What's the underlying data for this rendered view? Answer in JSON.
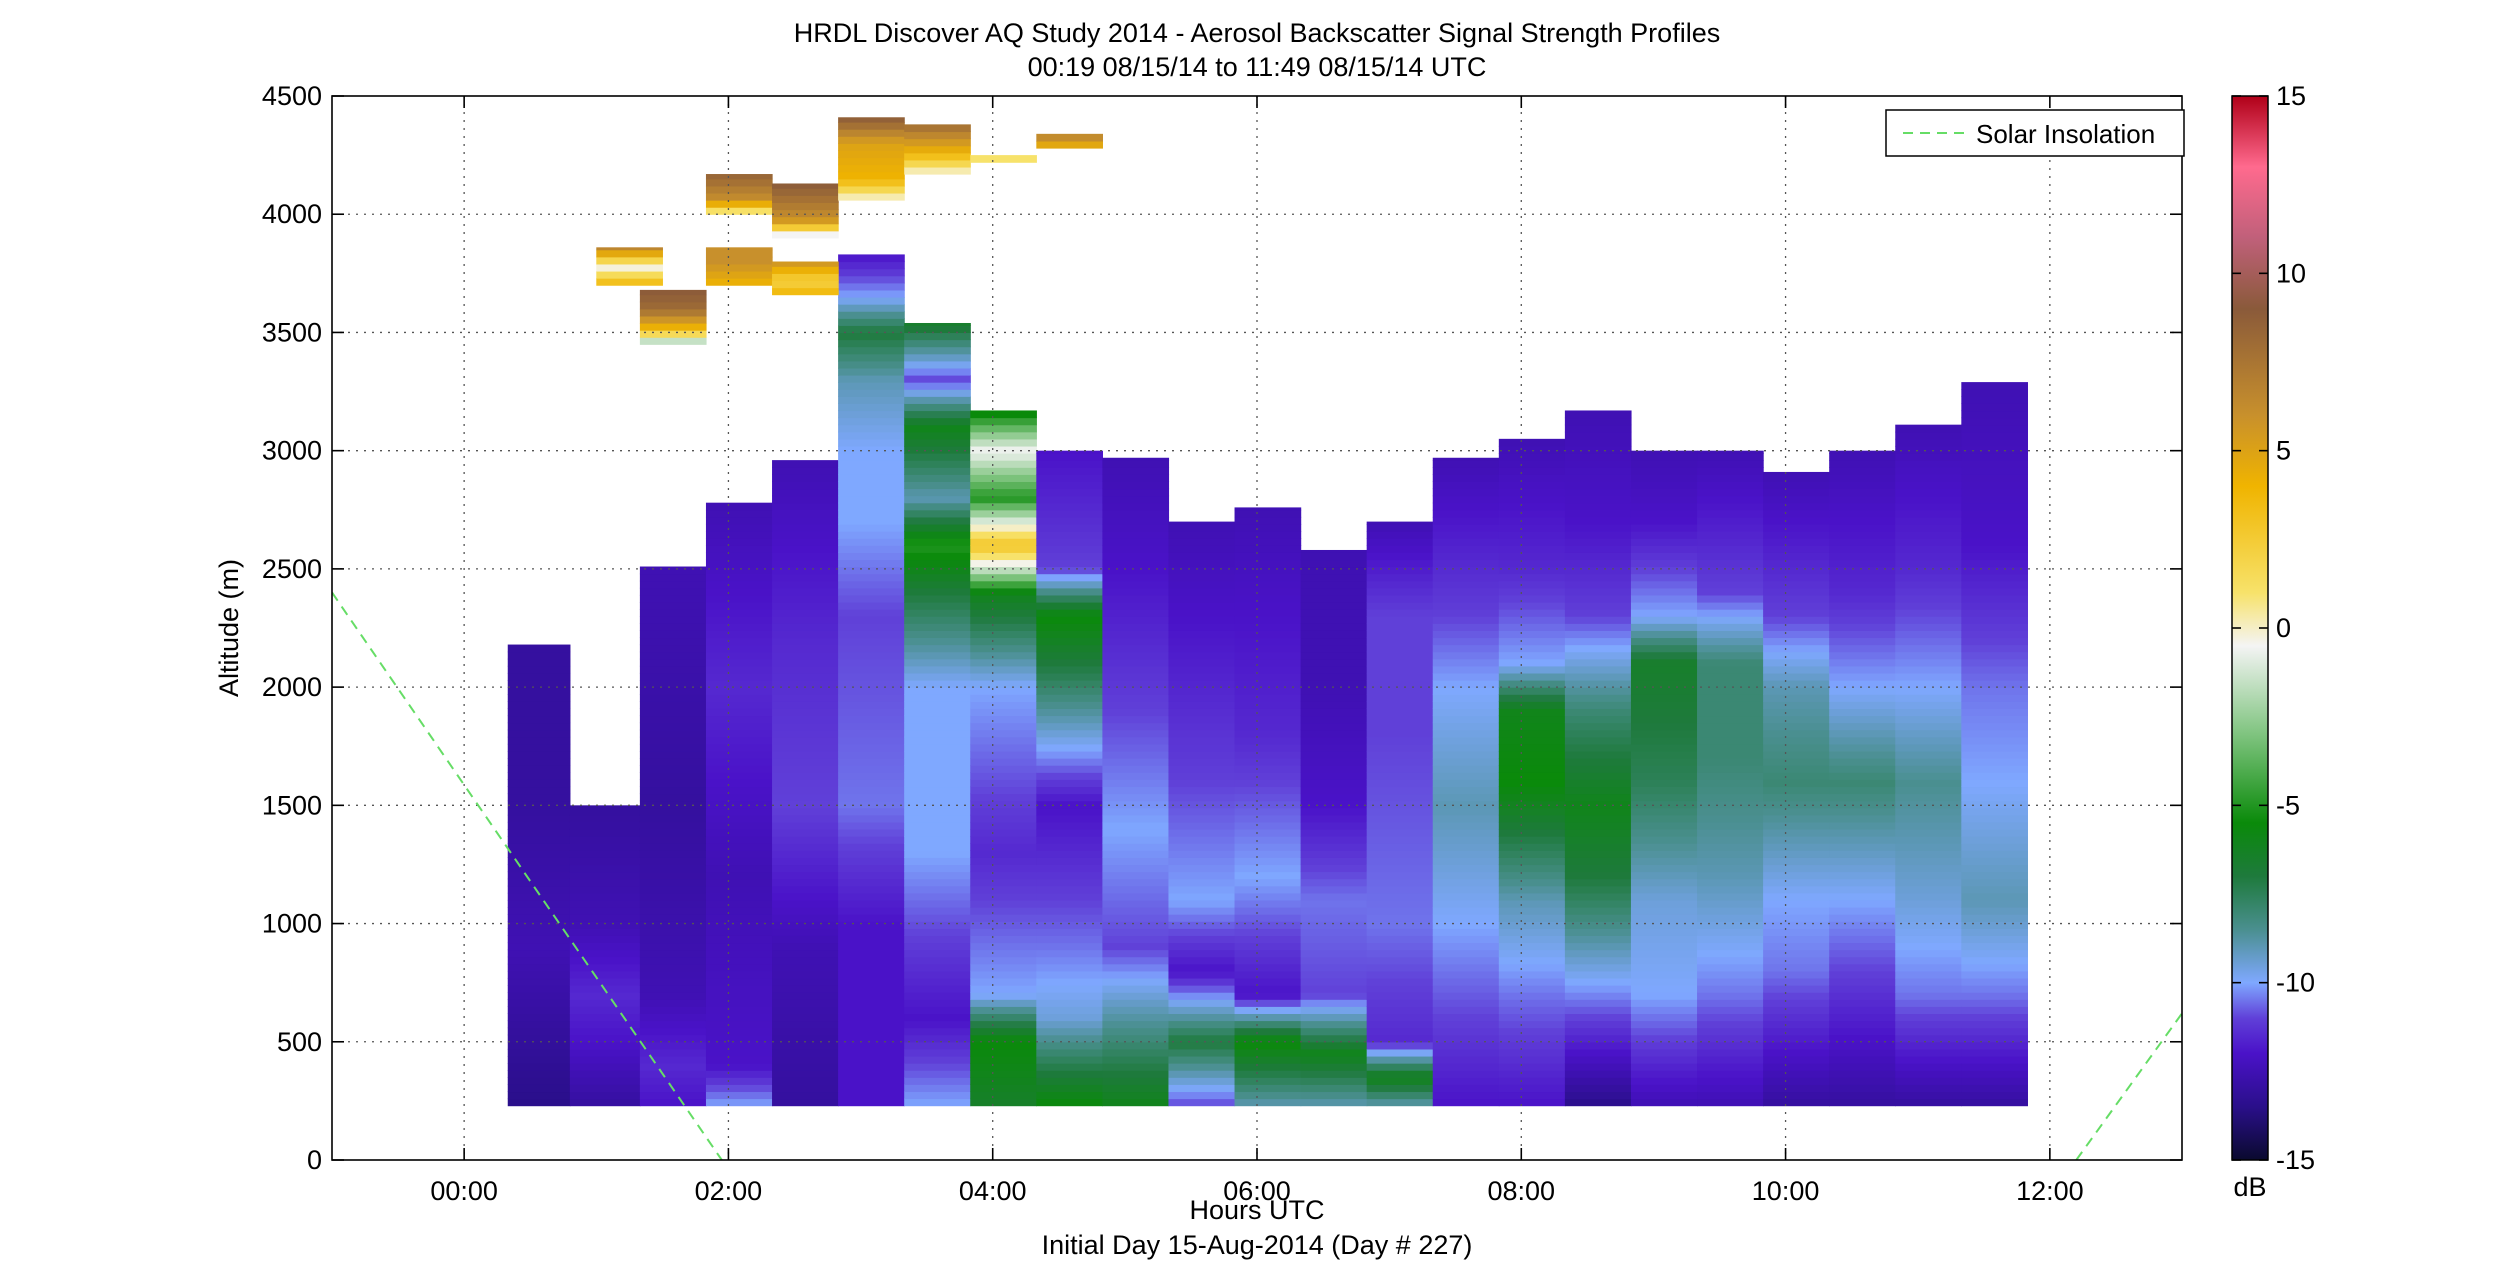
{
  "chart_data": {
    "type": "heatmap",
    "title": "HRDL Discover AQ Study 2014 - Aerosol Backscatter Signal Strength Profiles",
    "subtitle": "00:19 08/15/14 to 11:49 08/15/14  UTC",
    "xlabel": "Hours UTC",
    "x_footer": "Initial Day 15-Aug-2014 (Day # 227)",
    "ylabel": "Altitude (m)",
    "colorbar_label": "dB",
    "xlim": [
      -1.0,
      13.0
    ],
    "ylim": [
      0,
      4500
    ],
    "clim": [
      -15,
      15
    ],
    "x_ticks": [
      0,
      2,
      4,
      6,
      8,
      10,
      12
    ],
    "x_tick_labels": [
      "00:00",
      "02:00",
      "04:00",
      "06:00",
      "08:00",
      "10:00",
      "12:00"
    ],
    "y_ticks": [
      0,
      500,
      1000,
      1500,
      2000,
      2500,
      3000,
      3500,
      4000,
      4500
    ],
    "y_tick_labels": [
      "0",
      "500",
      "1000",
      "1500",
      "2000",
      "2500",
      "3000",
      "3500",
      "4000",
      "4500"
    ],
    "colorbar_ticks": [
      -15,
      -10,
      -5,
      0,
      5,
      10,
      15
    ],
    "colorbar_tick_labels": [
      "-15",
      "-10",
      "-5",
      "0",
      "5",
      "10",
      "15"
    ],
    "grid": true,
    "legend": {
      "position": "top-right",
      "entries": [
        {
          "name": "Solar Insolation",
          "color": "#66dd66",
          "style": "dashed"
        }
      ]
    },
    "colormap": [
      [
        -15,
        "#0a0a2e"
      ],
      [
        -13.5,
        "#2a0f8a"
      ],
      [
        -12,
        "#4a12c8"
      ],
      [
        -11,
        "#6040d8"
      ],
      [
        -10,
        "#7fa8ff"
      ],
      [
        -8.5,
        "#4a8f8f"
      ],
      [
        -7,
        "#1e7a3c"
      ],
      [
        -5.5,
        "#0a8a0a"
      ],
      [
        -3,
        "#7fc47f"
      ],
      [
        -0.5,
        "#f4f4f4"
      ],
      [
        1,
        "#f7e26a"
      ],
      [
        4,
        "#f0b400"
      ],
      [
        6,
        "#c8902c"
      ],
      [
        9,
        "#8a5a3a"
      ],
      [
        11,
        "#c0607a"
      ],
      [
        13,
        "#ff6a8e"
      ],
      [
        15,
        "#b00018"
      ]
    ],
    "columns": [
      {
        "t0": 0.33,
        "t1": 0.8,
        "bottom": 230,
        "top": 2180,
        "profile": [
          [
            230,
            -13.5
          ],
          [
            900,
            -12.5
          ],
          [
            1500,
            -13
          ],
          [
            2180,
            -13
          ]
        ]
      },
      {
        "t0": 0.8,
        "t1": 1.33,
        "bottom": 230,
        "top": 1500,
        "profile": [
          [
            230,
            -13
          ],
          [
            500,
            -12
          ],
          [
            700,
            -11.5
          ],
          [
            1000,
            -12.5
          ],
          [
            1500,
            -13
          ]
        ]
      },
      {
        "t0": 1.33,
        "t1": 1.83,
        "bottom": 230,
        "top": 2510,
        "profile": [
          [
            230,
            -12
          ],
          [
            400,
            -11.5
          ],
          [
            700,
            -12.5
          ],
          [
            1500,
            -13
          ],
          [
            2510,
            -12.5
          ]
        ]
      },
      {
        "t0": 1.83,
        "t1": 2.33,
        "bottom": 230,
        "top": 2780,
        "profile": [
          [
            230,
            -10
          ],
          [
            400,
            -12
          ],
          [
            1200,
            -12.5
          ],
          [
            2000,
            -11.5
          ],
          [
            2780,
            -12.5
          ]
        ]
      },
      {
        "t0": 2.33,
        "t1": 2.83,
        "bottom": 230,
        "top": 2960,
        "profile": [
          [
            230,
            -13
          ],
          [
            900,
            -12.5
          ],
          [
            1500,
            -11
          ],
          [
            2200,
            -11.5
          ],
          [
            2960,
            -12.5
          ]
        ]
      },
      {
        "t0": 2.83,
        "t1": 3.33,
        "bottom": 230,
        "top": 3830,
        "profile": [
          [
            230,
            -12
          ],
          [
            1000,
            -12
          ],
          [
            1500,
            -10.5
          ],
          [
            2300,
            -11
          ],
          [
            2700,
            -10
          ],
          [
            3000,
            -10
          ],
          [
            3300,
            -9
          ],
          [
            3500,
            -7
          ],
          [
            3650,
            -10
          ],
          [
            3830,
            -12
          ]
        ]
      },
      {
        "t0": 3.33,
        "t1": 3.83,
        "bottom": 230,
        "top": 3540,
        "profile": [
          [
            230,
            -10
          ],
          [
            600,
            -12
          ],
          [
            1300,
            -10
          ],
          [
            2000,
            -10
          ],
          [
            2400,
            -7
          ],
          [
            2600,
            -5
          ],
          [
            2800,
            -9
          ],
          [
            3100,
            -6
          ],
          [
            3300,
            -11
          ],
          [
            3540,
            -6.5
          ]
        ]
      },
      {
        "t0": 3.83,
        "t1": 4.33,
        "bottom": 230,
        "top": 3170,
        "profile": [
          [
            230,
            -6.5
          ],
          [
            500,
            -5.5
          ],
          [
            700,
            -10
          ],
          [
            1300,
            -11.5
          ],
          [
            2000,
            -10
          ],
          [
            2400,
            -6
          ],
          [
            2600,
            3
          ],
          [
            2800,
            -5
          ],
          [
            3000,
            -0.5
          ],
          [
            3170,
            -6
          ]
        ]
      },
      {
        "t0": 4.33,
        "t1": 4.83,
        "bottom": 230,
        "top": 3000,
        "profile": [
          [
            230,
            -5.5
          ],
          [
            600,
            -9.5
          ],
          [
            900,
            -10.5
          ],
          [
            1500,
            -12
          ],
          [
            2100,
            -7
          ],
          [
            2300,
            -5.5
          ],
          [
            2500,
            -11
          ],
          [
            3000,
            -12
          ]
        ]
      },
      {
        "t0": 4.83,
        "t1": 5.33,
        "bottom": 230,
        "top": 2970,
        "profile": [
          [
            230,
            -6
          ],
          [
            500,
            -8
          ],
          [
            900,
            -11
          ],
          [
            1400,
            -10
          ],
          [
            1900,
            -11
          ],
          [
            2500,
            -12
          ],
          [
            2970,
            -12.5
          ]
        ]
      },
      {
        "t0": 5.33,
        "t1": 5.83,
        "bottom": 230,
        "top": 2700,
        "profile": [
          [
            230,
            -11
          ],
          [
            500,
            -7
          ],
          [
            800,
            -12
          ],
          [
            1100,
            -10
          ],
          [
            1600,
            -11
          ],
          [
            2300,
            -12
          ],
          [
            2700,
            -12.5
          ]
        ]
      },
      {
        "t0": 5.83,
        "t1": 6.33,
        "bottom": 230,
        "top": 2760,
        "profile": [
          [
            230,
            -9
          ],
          [
            500,
            -5.5
          ],
          [
            700,
            -12
          ],
          [
            1200,
            -10
          ],
          [
            1800,
            -11.5
          ],
          [
            2300,
            -12
          ],
          [
            2760,
            -12.5
          ]
        ]
      },
      {
        "t0": 6.33,
        "t1": 6.83,
        "bottom": 230,
        "top": 2580,
        "profile": [
          [
            230,
            -9
          ],
          [
            450,
            -6
          ],
          [
            700,
            -11
          ],
          [
            1100,
            -10.5
          ],
          [
            1500,
            -12
          ],
          [
            2000,
            -12.5
          ],
          [
            2580,
            -12.5
          ]
        ]
      },
      {
        "t0": 6.83,
        "t1": 7.33,
        "bottom": 230,
        "top": 2700,
        "profile": [
          [
            230,
            -9
          ],
          [
            350,
            -6
          ],
          [
            500,
            -11.5
          ],
          [
            1000,
            -10.5
          ],
          [
            1800,
            -11
          ],
          [
            2300,
            -11
          ],
          [
            2700,
            -12.5
          ]
        ]
      },
      {
        "t0": 7.33,
        "t1": 7.83,
        "bottom": 230,
        "top": 2970,
        "profile": [
          [
            230,
            -12
          ],
          [
            600,
            -11
          ],
          [
            1000,
            -10
          ],
          [
            1500,
            -9
          ],
          [
            2000,
            -10
          ],
          [
            2300,
            -11
          ],
          [
            2970,
            -12.5
          ]
        ]
      },
      {
        "t0": 7.83,
        "t1": 8.33,
        "bottom": 230,
        "top": 3050,
        "profile": [
          [
            230,
            -12
          ],
          [
            700,
            -10.5
          ],
          [
            1100,
            -9
          ],
          [
            1600,
            -5.5
          ],
          [
            1900,
            -6
          ],
          [
            2100,
            -10
          ],
          [
            2500,
            -11.5
          ],
          [
            3050,
            -12.5
          ]
        ]
      },
      {
        "t0": 8.33,
        "t1": 8.83,
        "bottom": 230,
        "top": 3170,
        "profile": [
          [
            230,
            -13.5
          ],
          [
            600,
            -11
          ],
          [
            900,
            -9
          ],
          [
            1200,
            -7
          ],
          [
            1500,
            -6
          ],
          [
            1900,
            -8
          ],
          [
            2300,
            -11
          ],
          [
            2700,
            -12
          ],
          [
            3170,
            -12.5
          ]
        ]
      },
      {
        "t0": 8.83,
        "t1": 9.33,
        "bottom": 230,
        "top": 3000,
        "profile": [
          [
            230,
            -12.5
          ],
          [
            700,
            -10
          ],
          [
            1100,
            -9.5
          ],
          [
            1600,
            -7.5
          ],
          [
            2100,
            -6.5
          ],
          [
            2300,
            -10
          ],
          [
            2700,
            -12
          ],
          [
            3000,
            -12.5
          ]
        ]
      },
      {
        "t0": 9.33,
        "t1": 9.83,
        "bottom": 230,
        "top": 3000,
        "profile": [
          [
            230,
            -12.5
          ],
          [
            700,
            -10.5
          ],
          [
            1200,
            -9
          ],
          [
            1700,
            -8
          ],
          [
            2100,
            -8
          ],
          [
            2400,
            -11
          ],
          [
            3000,
            -12.5
          ]
        ]
      },
      {
        "t0": 9.83,
        "t1": 10.33,
        "bottom": 230,
        "top": 2910,
        "profile": [
          [
            230,
            -13
          ],
          [
            800,
            -10.5
          ],
          [
            1100,
            -10
          ],
          [
            1600,
            -8
          ],
          [
            2000,
            -9
          ],
          [
            2300,
            -11
          ],
          [
            2910,
            -12.5
          ]
        ]
      },
      {
        "t0": 10.33,
        "t1": 10.83,
        "bottom": 230,
        "top": 3000,
        "profile": [
          [
            230,
            -13
          ],
          [
            800,
            -11
          ],
          [
            1100,
            -10
          ],
          [
            1600,
            -8
          ],
          [
            2000,
            -10
          ],
          [
            2400,
            -11.5
          ],
          [
            3000,
            -12.5
          ]
        ]
      },
      {
        "t0": 10.83,
        "t1": 11.33,
        "bottom": 230,
        "top": 3110,
        "profile": [
          [
            230,
            -13
          ],
          [
            700,
            -10.5
          ],
          [
            1100,
            -9.5
          ],
          [
            1600,
            -8.5
          ],
          [
            2000,
            -10
          ],
          [
            2500,
            -11.5
          ],
          [
            3110,
            -12.5
          ]
        ]
      },
      {
        "t0": 11.33,
        "t1": 11.83,
        "bottom": 230,
        "top": 3290,
        "profile": [
          [
            230,
            -13
          ],
          [
            700,
            -10.5
          ],
          [
            1100,
            -9
          ],
          [
            1600,
            -10
          ],
          [
            2000,
            -10.5
          ],
          [
            2600,
            -12
          ],
          [
            3290,
            -12.5
          ]
        ]
      }
    ],
    "elevated_layers": [
      {
        "t0": 1.0,
        "t1": 1.5,
        "bottom": 3700,
        "top": 3860,
        "profile": [
          [
            3700,
            4
          ],
          [
            3780,
            -0.5
          ],
          [
            3860,
            7
          ]
        ]
      },
      {
        "t0": 1.33,
        "t1": 1.83,
        "bottom": 3450,
        "top": 3680,
        "profile": [
          [
            3450,
            -3
          ],
          [
            3520,
            4
          ],
          [
            3600,
            8
          ],
          [
            3680,
            9
          ]
        ]
      },
      {
        "t0": 1.83,
        "t1": 2.33,
        "bottom": 3700,
        "top": 3860,
        "profile": [
          [
            3700,
            4
          ],
          [
            3800,
            6
          ],
          [
            3860,
            6
          ]
        ]
      },
      {
        "t0": 1.83,
        "t1": 2.33,
        "bottom": 4000,
        "top": 4170,
        "profile": [
          [
            4000,
            -0.5
          ],
          [
            4060,
            6
          ],
          [
            4170,
            8.5
          ]
        ]
      },
      {
        "t0": 2.33,
        "t1": 2.83,
        "bottom": 3900,
        "top": 4130,
        "profile": [
          [
            3900,
            -2
          ],
          [
            3980,
            6
          ],
          [
            4130,
            9
          ]
        ]
      },
      {
        "t0": 2.33,
        "t1": 2.83,
        "bottom": 3660,
        "top": 3800,
        "profile": [
          [
            3660,
            4
          ],
          [
            3720,
            2
          ],
          [
            3800,
            6
          ]
        ]
      },
      {
        "t0": 2.83,
        "t1": 3.33,
        "bottom": 4060,
        "top": 4410,
        "profile": [
          [
            4060,
            -0.5
          ],
          [
            4150,
            4
          ],
          [
            4300,
            5
          ],
          [
            4410,
            9
          ]
        ]
      },
      {
        "t0": 3.33,
        "t1": 3.83,
        "bottom": 4170,
        "top": 4380,
        "profile": [
          [
            4170,
            -0.5
          ],
          [
            4260,
            4
          ],
          [
            4380,
            8
          ]
        ]
      },
      {
        "t0": 3.83,
        "t1": 4.33,
        "bottom": 4220,
        "top": 4250,
        "profile": [
          [
            4220,
            1
          ],
          [
            4250,
            1
          ]
        ]
      },
      {
        "t0": 4.33,
        "t1": 4.83,
        "bottom": 4280,
        "top": 4340,
        "profile": [
          [
            4280,
            4
          ],
          [
            4340,
            7
          ]
        ]
      }
    ],
    "solar_insolation": {
      "name": "Solar Insolation",
      "segments": [
        [
          [
            -1.0,
            2400
          ],
          [
            1.95,
            0
          ]
        ],
        [
          [
            12.2,
            0
          ],
          [
            13.0,
            620
          ]
        ]
      ]
    }
  }
}
